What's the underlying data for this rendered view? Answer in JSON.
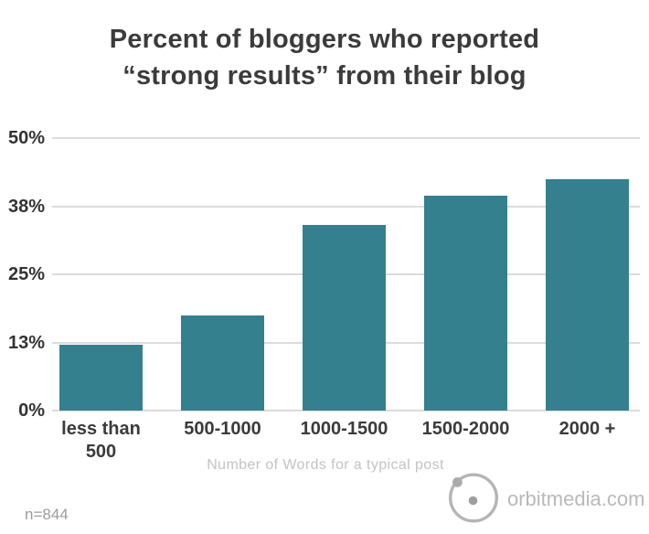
{
  "title": {
    "line1": "Percent of bloggers who reported",
    "line2": "“strong results” from their blog"
  },
  "chart_data": {
    "type": "bar",
    "title": "Percent of bloggers who reported “strong results” from their blog",
    "categories": [
      "less than\n500",
      "500-1000",
      "1000-1500",
      "1500-2000",
      "2000 +"
    ],
    "values": [
      12,
      17.5,
      34,
      39.5,
      42.5
    ],
    "xlabel": "Number of Words for a typical post",
    "ylabel": "",
    "ylim": [
      0,
      50
    ],
    "yticks": {
      "values": [
        0,
        12.5,
        25,
        37.5,
        50
      ],
      "labels": [
        "0%",
        "13%",
        "25%",
        "38%",
        "50%"
      ]
    },
    "grid": true,
    "legend_position": "none",
    "bar_color": "#35808E"
  },
  "footer": {
    "note": "n=844",
    "logo_text": "orbitmedia.com"
  },
  "colors": {
    "bar": "#35808E",
    "gridline": "#DBDBDB",
    "title_text": "#3B3B3B",
    "axis_text": "#333333",
    "muted_text": "#C3C3C3",
    "note_text": "#9C9C9C",
    "logo_gray": "#B5B5B5"
  }
}
